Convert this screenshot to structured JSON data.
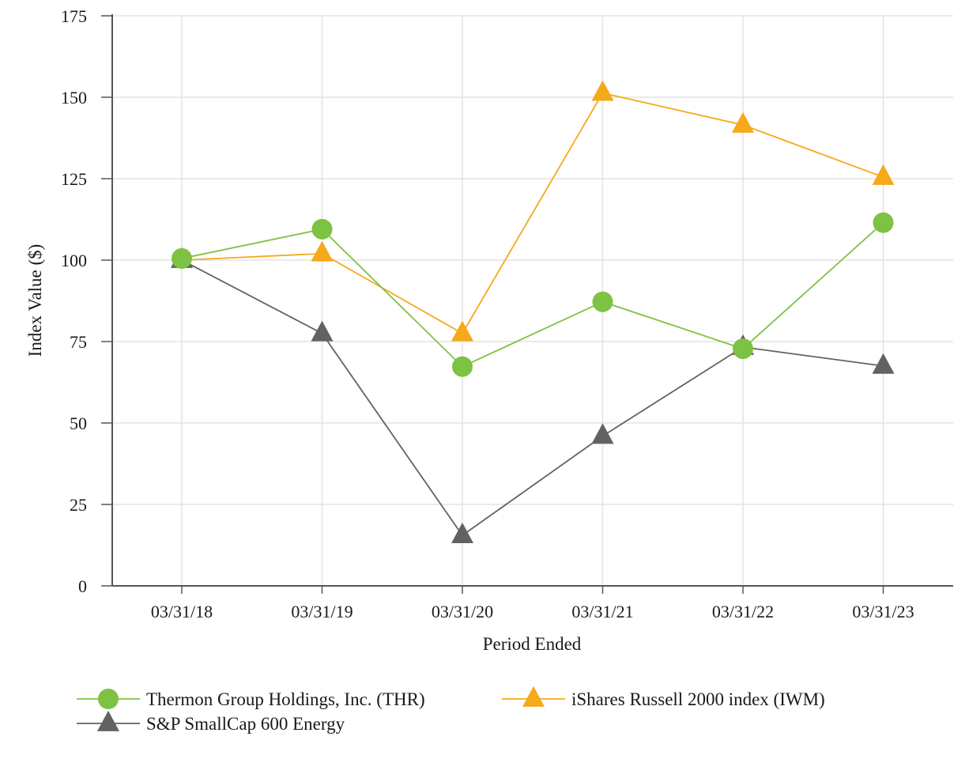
{
  "chart_data": {
    "type": "line",
    "xlabel": "Period Ended",
    "ylabel": "Index Value ($)",
    "categories": [
      "03/31/18",
      "03/31/19",
      "03/31/20",
      "03/31/21",
      "03/31/22",
      "03/31/23"
    ],
    "ylim": [
      0,
      175
    ],
    "yticks": [
      0,
      25,
      50,
      75,
      100,
      125,
      150,
      175
    ],
    "grid": true,
    "legend": "bottom",
    "series": [
      {
        "name": "Thermon Group Holdings, Inc. (THR)",
        "marker": "circle",
        "color": "#7dc242",
        "values": [
          100.5,
          109.5,
          67.3,
          87.2,
          72.8,
          111.5
        ]
      },
      {
        "name": "iShares Russell 2000 index (IWM)",
        "marker": "triangle",
        "color": "#f5a91b",
        "values": [
          100,
          102,
          77.5,
          151.3,
          141.5,
          125.5
        ]
      },
      {
        "name": "S&P SmallCap 600 Energy",
        "marker": "triangle",
        "color": "#626262",
        "values": [
          100,
          77.5,
          15.5,
          46,
          73.3,
          67.5
        ]
      }
    ]
  }
}
